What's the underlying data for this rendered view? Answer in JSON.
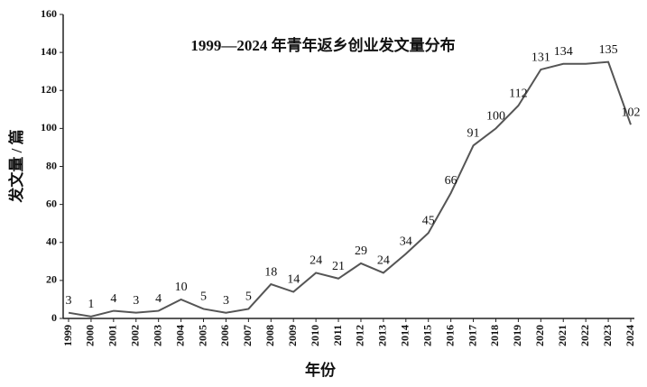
{
  "chart_data": {
    "type": "line",
    "title": "1999—2024 年青年返乡创业发文量分布",
    "x_label": "年份",
    "y_label": "发文量 / 篇",
    "categories": [
      "1999",
      "2000",
      "2001",
      "2002",
      "2003",
      "2004",
      "2005",
      "2006",
      "2007",
      "2008",
      "2009",
      "2010",
      "2011",
      "2012",
      "2013",
      "2014",
      "2015",
      "2016",
      "2017",
      "2018",
      "2019",
      "2020",
      "2021",
      "2022",
      "2023",
      "2024"
    ],
    "values": [
      3,
      1,
      4,
      3,
      4,
      10,
      5,
      3,
      5,
      18,
      14,
      24,
      21,
      29,
      24,
      34,
      45,
      66,
      91,
      100,
      112,
      131,
      134,
      134,
      135,
      102
    ],
    "value_labels": [
      "3",
      "1",
      "4",
      "3",
      "4",
      "10",
      "5",
      "3",
      "5",
      "18",
      "14",
      "24",
      "21",
      "29",
      "24",
      "34",
      "45",
      "66",
      "91",
      "100",
      "112",
      "131",
      "134",
      null,
      "135",
      "102"
    ],
    "color": "#555555",
    "ylim": [
      0,
      160
    ],
    "yticks": [
      0,
      20,
      40,
      60,
      80,
      100,
      120,
      140,
      160
    ]
  }
}
